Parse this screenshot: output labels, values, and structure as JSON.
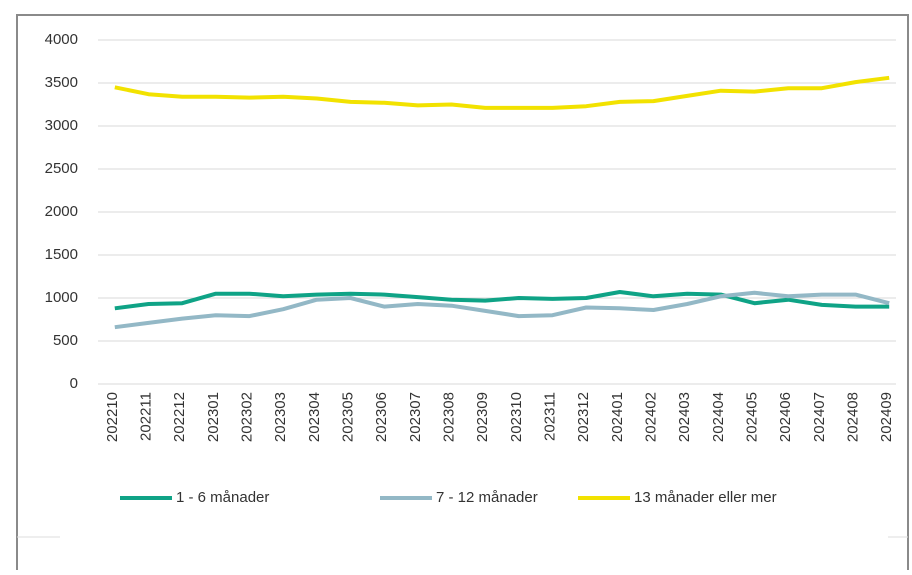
{
  "chart_data": {
    "type": "line",
    "categories": [
      "202210",
      "202211",
      "202212",
      "202301",
      "202302",
      "202303",
      "202304",
      "202305",
      "202306",
      "202307",
      "202308",
      "202309",
      "202310",
      "202311",
      "202312",
      "202401",
      "202402",
      "202403",
      "202404",
      "202405",
      "202406",
      "202407",
      "202408",
      "202409"
    ],
    "series": [
      {
        "name": "1 - 6 månader",
        "color": "#0fa386",
        "values": [
          880,
          930,
          940,
          1050,
          1050,
          1020,
          1040,
          1050,
          1040,
          1010,
          980,
          970,
          1000,
          990,
          1000,
          1070,
          1020,
          1050,
          1040,
          940,
          980,
          920,
          900,
          900
        ]
      },
      {
        "name": "7 - 12 månader",
        "color": "#93b8c6",
        "values": [
          660,
          710,
          760,
          800,
          790,
          870,
          980,
          1000,
          900,
          930,
          910,
          850,
          790,
          800,
          890,
          880,
          860,
          930,
          1020,
          1060,
          1020,
          1040,
          1040,
          940
        ]
      },
      {
        "name": "13 månader eller mer",
        "color": "#f2e200",
        "values": [
          3450,
          3370,
          3340,
          3340,
          3330,
          3340,
          3320,
          3280,
          3270,
          3240,
          3250,
          3210,
          3210,
          3210,
          3230,
          3280,
          3290,
          3350,
          3410,
          3400,
          3440,
          3440,
          3510,
          3560
        ]
      }
    ],
    "ylim": [
      0,
      4000
    ],
    "yticks": [
      0,
      500,
      1000,
      1500,
      2000,
      2500,
      3000,
      3500,
      4000
    ],
    "grid": true,
    "legend": "bottom"
  }
}
